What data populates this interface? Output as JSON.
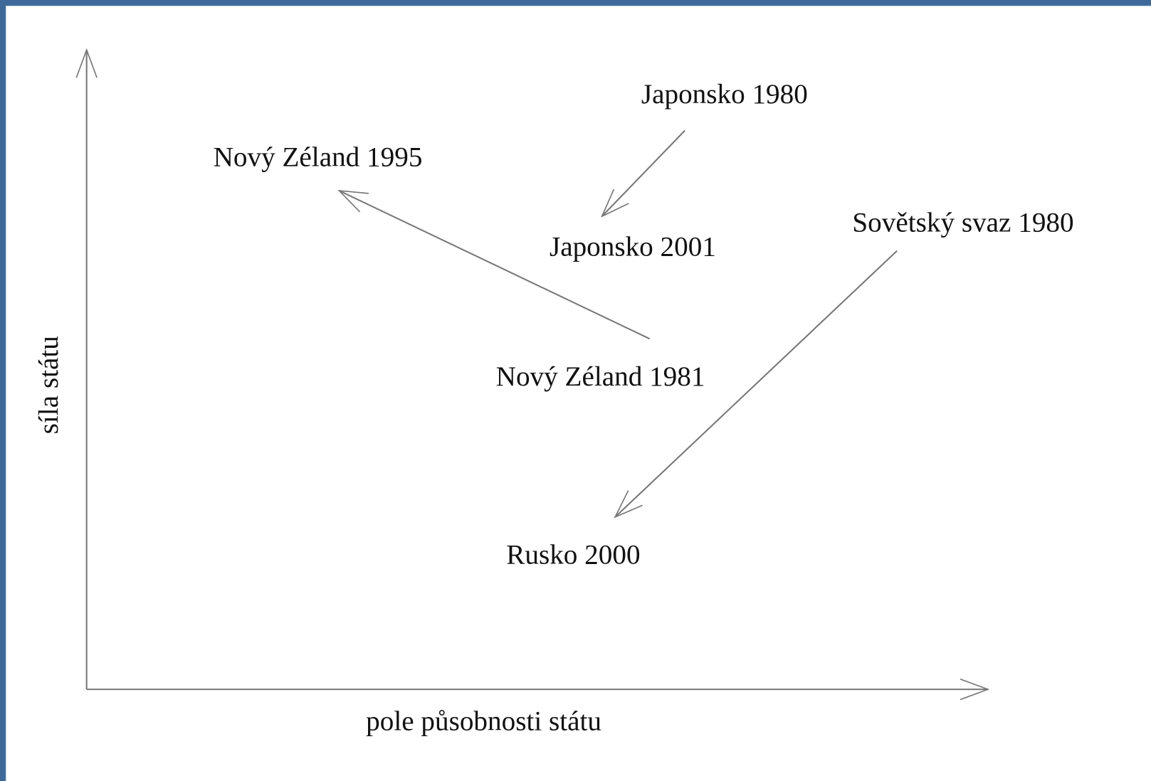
{
  "axes": {
    "y_label": "síla státu",
    "x_label": "pole působnosti státu"
  },
  "nodes": [
    {
      "label": "Japonsko 1980"
    },
    {
      "label": "Nový Zéland 1995"
    },
    {
      "label": "Japonsko 2001"
    },
    {
      "label": "Sovětský svaz 1980"
    },
    {
      "label": "Nový Zéland 1981"
    },
    {
      "label": "Rusko 2000"
    }
  ]
}
